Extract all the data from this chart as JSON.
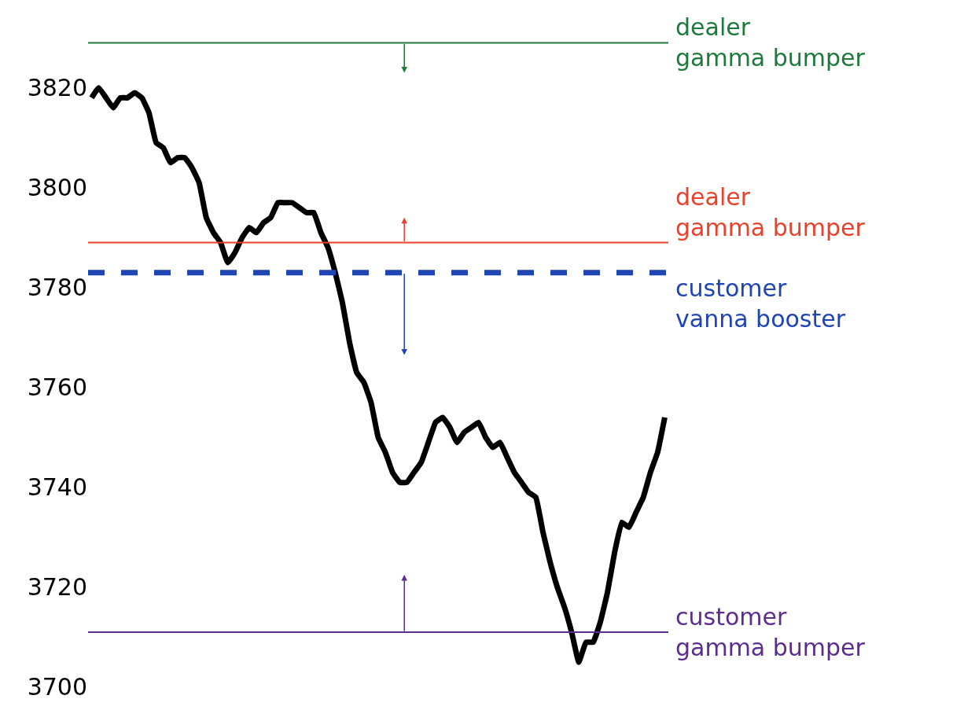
{
  "chart_data": {
    "type": "line",
    "categories": [
      null,
      null,
      null,
      null,
      null,
      null,
      null,
      null,
      null,
      null,
      null,
      null,
      null,
      null,
      null,
      null,
      null,
      null,
      null,
      null,
      null,
      null,
      null,
      null,
      null,
      null,
      null,
      null,
      null,
      null,
      null,
      null,
      null,
      null,
      null,
      null,
      null,
      null,
      null,
      null,
      null,
      null,
      null,
      null,
      null,
      null,
      null,
      null,
      null,
      null,
      null,
      null,
      null,
      null,
      null,
      null,
      null,
      null,
      null,
      null,
      null,
      null,
      null,
      null,
      null,
      null,
      null,
      null,
      null,
      null,
      null,
      null,
      null,
      null,
      null,
      null,
      null,
      null,
      null,
      null,
      null
    ],
    "series": [
      {
        "color": "#000000",
        "values": [
          3818,
          3820,
          3818,
          3816,
          3818,
          3818,
          3819,
          3818,
          3815,
          3809,
          3808,
          3805,
          3806,
          3806,
          3804,
          3801,
          3794,
          3791,
          3789,
          3785,
          3787,
          3790,
          3792,
          3791,
          3793,
          3794,
          3797,
          3797,
          3797,
          3796,
          3795,
          3795,
          3791,
          3788,
          3783,
          3777,
          3769,
          3763,
          3761,
          3757,
          3750,
          3747,
          3743,
          3741,
          3741,
          3743,
          3745,
          3749,
          3753,
          3754,
          3752,
          3749,
          3751,
          3752,
          3753,
          3750,
          3748,
          3749,
          3746,
          3743,
          3741,
          3739,
          3738,
          3731,
          3725,
          3720,
          3716,
          3711,
          3705,
          3709,
          3709,
          3713,
          3719,
          3727,
          3733,
          3732,
          3735,
          3738,
          3743,
          3747,
          3754
        ]
      }
    ],
    "ylim": [
      3697,
      3836
    ],
    "yticks": [
      3700,
      3720,
      3740,
      3760,
      3780,
      3800,
      3820
    ],
    "grid": false,
    "marker": "none",
    "line_style": "solid",
    "ref_lines": [
      {
        "axis": "y",
        "value": 3829,
        "label": "dealer gamma bumper",
        "color": "#1e7a3c",
        "line_style": "solid"
      },
      {
        "axis": "y",
        "value": 3789,
        "label": "dealer gamma bumper",
        "color": "#e8412c",
        "line_style": "solid"
      },
      {
        "axis": "y",
        "value": 3783,
        "label": "customer vanna booster",
        "color": "#1f45b5",
        "line_style": "dashed"
      },
      {
        "axis": "y",
        "value": 3711,
        "label": "customer gamma bumper",
        "color": "#5b2d8e",
        "line_style": "solid"
      }
    ]
  }
}
